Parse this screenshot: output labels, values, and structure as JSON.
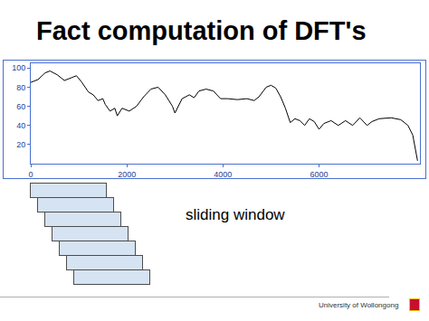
{
  "chart_data": {
    "type": "line",
    "title": "Fact computation of DFT's",
    "annotations": [
      "sliding window",
      "University of Wollongong"
    ],
    "x": [
      0,
      150,
      300,
      400,
      550,
      700,
      850,
      950,
      1050,
      1200,
      1300,
      1400,
      1500,
      1550,
      1650,
      1750,
      1800,
      1900,
      2050,
      2200,
      2350,
      2500,
      2650,
      2800,
      2950,
      3000,
      3150,
      3300,
      3400,
      3500,
      3650,
      3800,
      3950,
      4100,
      4300,
      4500,
      4650,
      4750,
      4900,
      5000,
      5100,
      5200,
      5300,
      5400,
      5500,
      5600,
      5700,
      5800,
      5900,
      6000,
      6100,
      6250,
      6400,
      6550,
      6700,
      6850,
      7000,
      7100,
      7250,
      7500,
      7700,
      7850,
      7950,
      8000,
      8050
    ],
    "values": [
      85,
      88,
      95,
      97,
      93,
      87,
      90,
      92,
      86,
      75,
      72,
      66,
      68,
      62,
      55,
      58,
      50,
      58,
      55,
      60,
      70,
      78,
      80,
      72,
      60,
      53,
      68,
      72,
      69,
      76,
      78,
      76,
      68,
      68,
      67,
      68,
      66,
      70,
      80,
      82,
      79,
      70,
      58,
      43,
      47,
      45,
      40,
      47,
      44,
      36,
      42,
      45,
      40,
      45,
      40,
      48,
      40,
      44,
      47,
      48,
      46,
      40,
      30,
      15,
      3
    ],
    "color": "#000000",
    "xlim": [
      0,
      8100
    ],
    "ylim": [
      0,
      105
    ],
    "xticks": [
      0,
      2000,
      4000,
      6000
    ],
    "yticks": [
      20,
      40,
      60,
      80,
      100
    ],
    "grid": false
  }
}
